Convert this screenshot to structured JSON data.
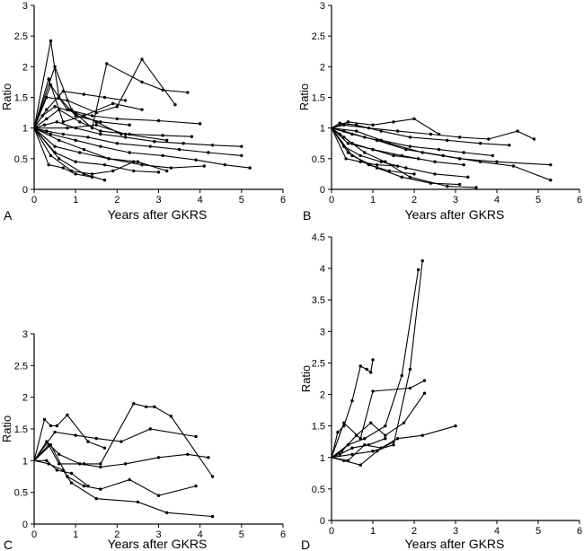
{
  "chart_data": [
    {
      "type": "line",
      "panel_label": "A",
      "xlabel": "Years after GKRS",
      "ylabel": "Ratio",
      "xlim": [
        0,
        6
      ],
      "ylim": [
        0,
        3
      ],
      "xticks": [
        0,
        1,
        2,
        3,
        4,
        5,
        6
      ],
      "yticks": [
        0,
        0.5,
        1,
        1.5,
        2,
        2.5,
        3
      ],
      "ytick_labels": [
        "0",
        "0.5",
        "1",
        "1.5",
        "2",
        "2.5",
        "3"
      ],
      "series": [
        {
          "x": [
            0,
            0.4,
            0.6,
            1.0,
            1.6,
            2.3
          ],
          "y": [
            1,
            2.42,
            1.5,
            1.2,
            1.1,
            1.05
          ]
        },
        {
          "x": [
            0,
            0.5,
            0.9,
            1.4,
            1.75,
            2.6,
            3.1,
            3.7
          ],
          "y": [
            1,
            2.0,
            1.3,
            1.0,
            2.05,
            1.75,
            1.62,
            1.58
          ]
        },
        {
          "x": [
            0,
            0.3,
            0.8,
            1.5,
            2.0,
            2.6,
            3.4
          ],
          "y": [
            1,
            1.5,
            1.45,
            1.25,
            1.35,
            2.12,
            1.38
          ]
        },
        {
          "x": [
            0,
            0.3,
            0.7,
            1.2,
            1.7,
            2.2
          ],
          "y": [
            1,
            1.3,
            1.6,
            1.55,
            1.5,
            1.45
          ]
        },
        {
          "x": [
            0,
            0.4,
            0.8,
            1.4,
            2.0,
            3.0,
            4.0
          ],
          "y": [
            1,
            1.7,
            1.3,
            1.2,
            1.15,
            1.12,
            1.07
          ]
        },
        {
          "x": [
            0,
            0.35,
            0.7,
            1.2,
            1.9,
            2.6
          ],
          "y": [
            1,
            1.8,
            1.1,
            1.2,
            1.4,
            1.3
          ]
        },
        {
          "x": [
            0,
            0.2,
            0.5,
            1.0,
            1.5,
            2.1
          ],
          "y": [
            1,
            1.2,
            1.35,
            1.25,
            1.1,
            0.9
          ]
        },
        {
          "x": [
            0,
            0.3,
            0.6,
            1.1,
            1.6,
            2.3,
            3.1,
            3.8
          ],
          "y": [
            1,
            1.15,
            1.3,
            1.1,
            0.95,
            0.9,
            0.88,
            0.86
          ]
        },
        {
          "x": [
            0,
            0.25,
            0.55,
            1.0,
            1.6,
            2.2,
            2.9,
            3.6,
            4.3,
            5.0
          ],
          "y": [
            1,
            1.05,
            1.1,
            1.0,
            0.9,
            0.85,
            0.78,
            0.75,
            0.72,
            0.7
          ]
        },
        {
          "x": [
            0,
            0.3,
            0.7,
            1.3,
            2.0,
            2.8,
            3.5,
            4.2,
            5.0
          ],
          "y": [
            1,
            0.95,
            0.9,
            0.85,
            0.75,
            0.7,
            0.65,
            0.6,
            0.55
          ]
        },
        {
          "x": [
            0,
            0.4,
            1.0,
            1.6,
            2.3,
            3.1,
            3.9,
            4.6,
            5.2
          ],
          "y": [
            1,
            0.9,
            0.8,
            0.7,
            0.6,
            0.55,
            0.48,
            0.4,
            0.35
          ]
        },
        {
          "x": [
            0,
            0.5,
            1.1,
            1.8,
            2.5,
            3.2
          ],
          "y": [
            1,
            0.7,
            0.6,
            0.5,
            0.45,
            0.3
          ]
        },
        {
          "x": [
            0,
            0.6,
            1.2,
            1.8,
            2.6,
            3.3,
            4.1
          ],
          "y": [
            1,
            0.8,
            0.65,
            0.5,
            0.4,
            0.35,
            0.38
          ]
        },
        {
          "x": [
            0,
            0.5,
            1.0,
            1.7,
            2.4,
            3.0
          ],
          "y": [
            1,
            0.6,
            0.45,
            0.4,
            0.3,
            0.28
          ]
        },
        {
          "x": [
            0,
            0.4,
            0.9,
            1.4,
            1.9,
            2.4
          ],
          "y": [
            1,
            0.55,
            0.3,
            0.25,
            0.3,
            0.45
          ]
        },
        {
          "x": [
            0,
            0.35,
            0.7,
            1.0,
            1.4
          ],
          "y": [
            1,
            0.4,
            0.35,
            0.25,
            0.2
          ]
        },
        {
          "x": [
            0,
            0.6,
            1.2,
            1.7
          ],
          "y": [
            1,
            0.5,
            0.25,
            0.15
          ]
        },
        {
          "x": [
            0,
            0.8,
            1.5,
            2.2,
            3.2
          ],
          "y": [
            1,
            1.0,
            1.05,
            0.9,
            0.8
          ]
        }
      ]
    },
    {
      "type": "line",
      "panel_label": "B",
      "xlabel": "Years after GKRS",
      "ylabel": "Ratio",
      "xlim": [
        0,
        6
      ],
      "ylim": [
        0,
        3
      ],
      "xticks": [
        0,
        1,
        2,
        3,
        4,
        5,
        6
      ],
      "yticks": [
        0,
        0.5,
        1,
        1.5,
        2,
        2.5,
        3
      ],
      "ytick_labels": [
        "0",
        "0.5",
        "1",
        "1.5",
        "2",
        "2.5",
        "3"
      ],
      "series": [
        {
          "x": [
            0,
            0.3,
            0.9,
            1.6,
            2.4,
            3.1,
            3.8,
            4.5,
            4.9
          ],
          "y": [
            1,
            1.05,
            1.0,
            0.95,
            0.9,
            0.85,
            0.82,
            0.95,
            0.82
          ]
        },
        {
          "x": [
            0,
            0.4,
            1.0,
            1.5,
            2.0,
            2.6
          ],
          "y": [
            1,
            1.1,
            1.05,
            1.1,
            1.15,
            0.9
          ]
        },
        {
          "x": [
            0,
            0.2,
            0.6,
            1.2,
            1.9,
            2.8,
            3.6,
            4.3
          ],
          "y": [
            1,
            1.08,
            1.05,
            0.95,
            0.85,
            0.8,
            0.75,
            0.72
          ]
        },
        {
          "x": [
            0,
            0.3,
            0.8,
            1.4,
            2.2,
            3.1,
            4.0,
            5.3
          ],
          "y": [
            1,
            0.95,
            0.85,
            0.75,
            0.6,
            0.5,
            0.45,
            0.4
          ]
        },
        {
          "x": [
            0,
            0.5,
            1.1,
            1.8,
            2.7,
            3.6,
            4.4,
            5.3
          ],
          "y": [
            1,
            0.9,
            0.8,
            0.65,
            0.55,
            0.45,
            0.38,
            0.15
          ]
        },
        {
          "x": [
            0,
            0.4,
            1.0,
            1.7,
            2.5,
            3.2
          ],
          "y": [
            1,
            0.75,
            0.65,
            0.55,
            0.45,
            0.4
          ]
        },
        {
          "x": [
            0,
            0.3,
            0.7,
            1.2,
            1.8,
            2.5,
            3.3
          ],
          "y": [
            1,
            0.7,
            0.55,
            0.45,
            0.35,
            0.25,
            0.2
          ]
        },
        {
          "x": [
            0,
            0.4,
            0.9,
            1.4,
            2.0
          ],
          "y": [
            1,
            0.6,
            0.4,
            0.3,
            0.25
          ]
        },
        {
          "x": [
            0,
            0.5,
            1.1,
            1.7,
            2.4,
            3.1
          ],
          "y": [
            1,
            0.55,
            0.35,
            0.2,
            0.1,
            0.08
          ]
        },
        {
          "x": [
            0,
            0.3,
            0.8,
            1.3,
            1.9,
            2.8,
            3.5
          ],
          "y": [
            1,
            0.85,
            0.6,
            0.45,
            0.2,
            0.05,
            0.03
          ]
        },
        {
          "x": [
            0,
            0.2,
            0.5,
            1.0,
            1.5,
            2.1
          ],
          "y": [
            1,
            0.9,
            0.75,
            0.65,
            0.55,
            0.5
          ]
        },
        {
          "x": [
            0,
            0.6,
            1.2,
            1.9,
            2.6,
            3.2,
            3.9
          ],
          "y": [
            1,
            0.95,
            0.8,
            0.7,
            0.65,
            0.6,
            0.55
          ]
        },
        {
          "x": [
            0,
            0.35,
            0.7,
            1.1,
            1.6
          ],
          "y": [
            1,
            0.5,
            0.45,
            0.4,
            0.38
          ]
        }
      ]
    },
    {
      "type": "line",
      "panel_label": "C",
      "xlabel": "Years after GKRS",
      "ylabel": "Ratio",
      "xlim": [
        0,
        6
      ],
      "ylim": [
        0,
        3
      ],
      "xticks": [
        0,
        1,
        2,
        3,
        4,
        5,
        6
      ],
      "yticks": [
        0,
        0.5,
        1,
        1.5,
        2,
        2.5,
        3
      ],
      "ytick_labels": [
        "0",
        "0.5",
        "1",
        "1.5",
        "2",
        "2.5",
        "3"
      ],
      "series": [
        {
          "x": [
            0,
            0.25,
            0.4,
            0.55,
            0.8,
            1.3,
            1.7
          ],
          "y": [
            1,
            1.65,
            1.55,
            1.55,
            1.72,
            1.3,
            1.2
          ]
        },
        {
          "x": [
            0,
            0.35,
            0.6,
            1.2,
            1.6,
            2.4,
            2.7,
            2.9,
            3.3,
            4.3
          ],
          "y": [
            1,
            1.25,
            0.95,
            0.95,
            0.95,
            1.9,
            1.85,
            1.85,
            1.7,
            0.75
          ]
        },
        {
          "x": [
            0,
            0.5,
            1.0,
            1.5,
            2.1,
            2.8,
            3.9
          ],
          "y": [
            1,
            1.45,
            1.4,
            1.35,
            1.3,
            1.5,
            1.38
          ]
        },
        {
          "x": [
            0,
            0.3,
            0.6,
            1.1,
            1.6,
            2.2,
            3.0,
            3.7,
            4.2
          ],
          "y": [
            1,
            1.3,
            1.1,
            0.95,
            0.9,
            0.95,
            1.05,
            1.1,
            1.05
          ]
        },
        {
          "x": [
            0,
            0.35,
            0.7,
            0.9,
            1.5,
            2.5,
            3.2,
            4.3
          ],
          "y": [
            1,
            0.95,
            0.85,
            0.65,
            0.4,
            0.35,
            0.18,
            0.12
          ]
        },
        {
          "x": [
            0,
            0.4,
            0.8,
            1.2,
            1.6,
            2.3,
            3.0,
            3.9
          ],
          "y": [
            1,
            1.25,
            0.75,
            0.6,
            0.55,
            0.7,
            0.45,
            0.6
          ]
        },
        {
          "x": [
            0,
            0.3,
            0.55,
            0.9,
            1.3
          ],
          "y": [
            1,
            1.0,
            0.85,
            0.8,
            0.6
          ]
        }
      ]
    },
    {
      "type": "line",
      "panel_label": "D",
      "xlabel": "Years after GKRS",
      "ylabel": "Ratio",
      "xlim": [
        0,
        6
      ],
      "ylim": [
        0,
        4.5
      ],
      "xticks": [
        0,
        1,
        2,
        3,
        4,
        5,
        6
      ],
      "yticks": [
        0,
        0.5,
        1,
        1.5,
        2,
        2.5,
        3,
        3.5,
        4,
        4.5
      ],
      "ytick_labels": [
        "0",
        "0.5",
        "1",
        "1.5",
        "2",
        "2.5",
        "3",
        "3.5",
        "4",
        "4.5"
      ],
      "series": [
        {
          "x": [
            0,
            0.15,
            0.3,
            0.5,
            0.7,
            0.85,
            0.95,
            1.0
          ],
          "y": [
            1,
            1.4,
            1.5,
            1.9,
            2.45,
            2.4,
            2.35,
            2.55
          ]
        },
        {
          "x": [
            0,
            0.4,
            0.8,
            1.3,
            1.7,
            2.1
          ],
          "y": [
            1,
            1.2,
            1.3,
            1.5,
            2.3,
            3.98
          ]
        },
        {
          "x": [
            0,
            0.5,
            1.0,
            1.5,
            1.9,
            2.2
          ],
          "y": [
            1,
            1.05,
            1.1,
            1.2,
            2.4,
            4.12
          ]
        },
        {
          "x": [
            0,
            0.3,
            0.7,
            1.0,
            1.9,
            2.25
          ],
          "y": [
            1,
            1.55,
            1.3,
            2.05,
            2.1,
            2.22
          ]
        },
        {
          "x": [
            0,
            0.25,
            0.6,
            0.95,
            1.3,
            1.75,
            2.25
          ],
          "y": [
            1,
            1.1,
            1.35,
            1.55,
            1.35,
            1.55,
            2.02
          ]
        },
        {
          "x": [
            0,
            0.4,
            0.8,
            1.2,
            1.6,
            2.2,
            3.0
          ],
          "y": [
            1,
            0.95,
            1.2,
            1.15,
            1.3,
            1.35,
            1.5
          ]
        },
        {
          "x": [
            0,
            0.3,
            0.7,
            1.1,
            1.5
          ],
          "y": [
            1,
            0.95,
            0.88,
            1.1,
            1.25
          ]
        },
        {
          "x": [
            0,
            0.2,
            0.5,
            0.9,
            1.3
          ],
          "y": [
            1,
            1.05,
            1.15,
            1.2,
            1.3
          ]
        }
      ]
    }
  ]
}
